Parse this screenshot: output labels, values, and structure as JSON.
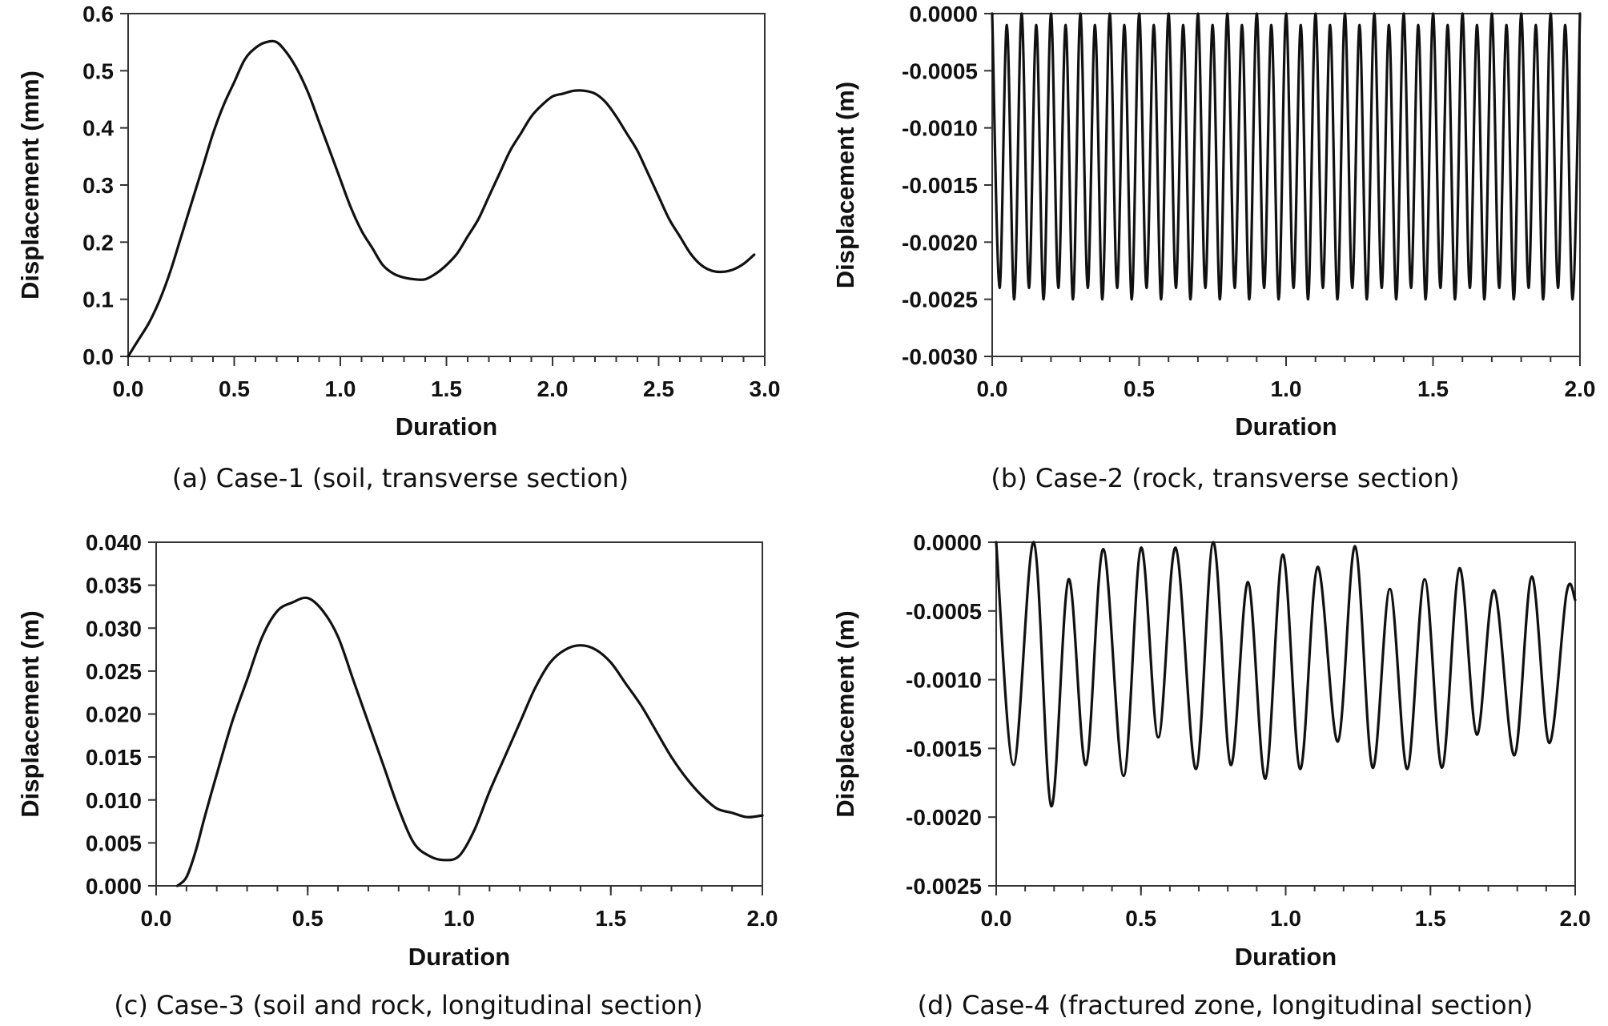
{
  "chart_data": [
    {
      "type": "line",
      "id": "a",
      "caption": "(a) Case-1 (soil, transverse section)",
      "xlabel": "Duration",
      "ylabel": "Displacement (mm)",
      "xlim": [
        0,
        3.0
      ],
      "ylim": [
        0,
        0.6
      ],
      "xticks": [
        0,
        0.5,
        1.0,
        1.5,
        2.0,
        2.5,
        3.0
      ],
      "xtick_labels": [
        "0.0",
        "0.5",
        "1.0",
        "1.5",
        "2.0",
        "2.5",
        "3.0"
      ],
      "yticks": [
        0,
        0.1,
        0.2,
        0.3,
        0.4,
        0.5,
        0.6
      ],
      "ytick_labels": [
        "0.0",
        "0.1",
        "0.2",
        "0.3",
        "0.4",
        "0.5",
        "0.6"
      ],
      "x_minor": 0.1,
      "grid": false,
      "series": [
        {
          "x": [
            0.0,
            0.05,
            0.1,
            0.15,
            0.2,
            0.25,
            0.3,
            0.35,
            0.4,
            0.45,
            0.5,
            0.55,
            0.6,
            0.65,
            0.7,
            0.75,
            0.8,
            0.85,
            0.9,
            0.95,
            1.0,
            1.05,
            1.1,
            1.15,
            1.2,
            1.25,
            1.3,
            1.35,
            1.4,
            1.45,
            1.5,
            1.55,
            1.6,
            1.65,
            1.7,
            1.75,
            1.8,
            1.85,
            1.9,
            1.95,
            2.0,
            2.05,
            2.1,
            2.15,
            2.2,
            2.25,
            2.3,
            2.35,
            2.4,
            2.45,
            2.5,
            2.55,
            2.6,
            2.65,
            2.7,
            2.75,
            2.8,
            2.85,
            2.9,
            2.95
          ],
          "y": [
            0.0,
            0.03,
            0.06,
            0.1,
            0.15,
            0.21,
            0.27,
            0.33,
            0.39,
            0.44,
            0.48,
            0.52,
            0.54,
            0.55,
            0.55,
            0.53,
            0.5,
            0.46,
            0.41,
            0.36,
            0.31,
            0.26,
            0.22,
            0.19,
            0.16,
            0.145,
            0.138,
            0.135,
            0.135,
            0.145,
            0.16,
            0.18,
            0.21,
            0.24,
            0.28,
            0.32,
            0.36,
            0.39,
            0.42,
            0.44,
            0.455,
            0.46,
            0.465,
            0.465,
            0.46,
            0.445,
            0.42,
            0.39,
            0.36,
            0.32,
            0.28,
            0.24,
            0.21,
            0.18,
            0.16,
            0.15,
            0.148,
            0.152,
            0.162,
            0.178
          ]
        }
      ]
    },
    {
      "type": "line",
      "id": "b",
      "caption": "(b) Case-2 (rock, transverse section)",
      "xlabel": "Duration",
      "ylabel": "Displacement (m)",
      "xlim": [
        0,
        2.0
      ],
      "ylim": [
        -0.003,
        0
      ],
      "xticks": [
        0,
        0.5,
        1.0,
        1.5,
        2.0
      ],
      "xtick_labels": [
        "0.0",
        "0.5",
        "1.0",
        "1.5",
        "2.0"
      ],
      "yticks": [
        0,
        -0.0005,
        -0.001,
        -0.0015,
        -0.002,
        -0.0025,
        -0.003
      ],
      "ytick_labels": [
        "0.0000",
        "-0.0005",
        "-0.0010",
        "-0.0015",
        "-0.0020",
        "-0.0025",
        "-0.0030"
      ],
      "x_minor": 0.1,
      "grid": false,
      "series": [
        {
          "x": [
            0.0,
            0.025,
            0.05,
            0.075,
            0.1,
            0.125,
            0.15,
            0.175,
            0.2,
            0.225,
            0.25,
            0.275,
            0.3,
            0.325,
            0.35,
            0.375,
            0.4,
            0.425,
            0.45,
            0.475,
            0.5,
            0.525,
            0.55,
            0.575,
            0.6,
            0.625,
            0.65,
            0.675,
            0.7,
            0.725,
            0.75,
            0.775,
            0.8,
            0.825,
            0.85,
            0.875,
            0.9,
            0.925,
            0.95,
            0.975,
            1.0,
            1.025,
            1.05,
            1.075,
            1.1,
            1.125,
            1.15,
            1.175,
            1.2,
            1.225,
            1.25,
            1.275,
            1.3,
            1.325,
            1.35,
            1.375,
            1.4,
            1.425,
            1.45,
            1.475,
            1.5,
            1.525,
            1.55,
            1.575,
            1.6,
            1.625,
            1.65,
            1.675,
            1.7,
            1.725,
            1.75,
            1.775,
            1.8,
            1.825,
            1.85,
            1.875,
            1.9,
            1.925,
            1.95,
            1.975,
            2.0
          ],
          "y": [
            0.0,
            -0.0024,
            -0.0001,
            -0.0025,
            -0.0,
            -0.0024,
            -0.0001,
            -0.0025,
            -0.0,
            -0.0024,
            -0.0001,
            -0.0025,
            -0.0,
            -0.0024,
            -0.0001,
            -0.0025,
            -0.0,
            -0.0024,
            -0.0001,
            -0.0025,
            -0.0,
            -0.0024,
            -0.0001,
            -0.0025,
            -0.0,
            -0.0024,
            -0.0001,
            -0.0025,
            -0.0,
            -0.0024,
            -0.0001,
            -0.0025,
            -0.0,
            -0.0024,
            -0.0001,
            -0.0025,
            -0.0,
            -0.0024,
            -0.0001,
            -0.0025,
            -0.0,
            -0.0024,
            -0.0001,
            -0.0025,
            -0.0,
            -0.0024,
            -0.0001,
            -0.0025,
            -0.0,
            -0.0024,
            -0.0001,
            -0.0025,
            -0.0,
            -0.0024,
            -0.0001,
            -0.0025,
            -0.0,
            -0.0024,
            -0.0001,
            -0.0025,
            -0.0,
            -0.0024,
            -0.0001,
            -0.0025,
            -0.0,
            -0.0024,
            -0.0001,
            -0.0025,
            -0.0,
            -0.0024,
            -0.0001,
            -0.0025,
            -0.0,
            -0.0024,
            -0.0001,
            -0.0025,
            -0.0,
            -0.0024,
            -0.0001,
            -0.0025,
            -0.0
          ]
        }
      ]
    },
    {
      "type": "line",
      "id": "c",
      "caption": "(c) Case-3 (soil and rock, longitudinal section)",
      "xlabel": "Duration",
      "ylabel": "Displacement (m)",
      "xlim": [
        0,
        2.0
      ],
      "ylim": [
        0,
        0.04
      ],
      "xticks": [
        0,
        0.5,
        1.0,
        1.5,
        2.0
      ],
      "xtick_labels": [
        "0.0",
        "0.5",
        "1.0",
        "1.5",
        "2.0"
      ],
      "yticks": [
        0,
        0.005,
        0.01,
        0.015,
        0.02,
        0.025,
        0.03,
        0.035,
        0.04
      ],
      "ytick_labels": [
        "0.000",
        "0.005",
        "0.010",
        "0.015",
        "0.020",
        "0.025",
        "0.030",
        "0.035",
        "0.040"
      ],
      "x_minor": 0.1,
      "grid": false,
      "series": [
        {
          "x": [
            0.07,
            0.1,
            0.13,
            0.16,
            0.2,
            0.25,
            0.3,
            0.35,
            0.4,
            0.45,
            0.5,
            0.55,
            0.6,
            0.65,
            0.7,
            0.75,
            0.8,
            0.85,
            0.9,
            0.95,
            1.0,
            1.05,
            1.1,
            1.15,
            1.2,
            1.25,
            1.3,
            1.35,
            1.4,
            1.45,
            1.5,
            1.55,
            1.6,
            1.65,
            1.7,
            1.75,
            1.8,
            1.85,
            1.9,
            1.95,
            2.0
          ],
          "y": [
            0.0,
            0.001,
            0.004,
            0.008,
            0.013,
            0.019,
            0.024,
            0.029,
            0.032,
            0.033,
            0.0335,
            0.032,
            0.029,
            0.024,
            0.019,
            0.014,
            0.009,
            0.005,
            0.0035,
            0.003,
            0.0035,
            0.0065,
            0.011,
            0.015,
            0.019,
            0.023,
            0.026,
            0.0275,
            0.028,
            0.0275,
            0.026,
            0.0235,
            0.021,
            0.018,
            0.015,
            0.0125,
            0.0105,
            0.009,
            0.0085,
            0.008,
            0.0082
          ]
        }
      ]
    },
    {
      "type": "line",
      "id": "d",
      "caption": "(d) Case-4 (fractured zone, longitudinal section)",
      "xlabel": "Duration",
      "ylabel": "Displacement (m)",
      "xlim": [
        0,
        2.0
      ],
      "ylim": [
        -0.0025,
        0
      ],
      "xticks": [
        0,
        0.5,
        1.0,
        1.5,
        2.0
      ],
      "xtick_labels": [
        "0.0",
        "0.5",
        "1.0",
        "1.5",
        "2.0"
      ],
      "yticks": [
        0,
        -0.0005,
        -0.001,
        -0.0015,
        -0.002,
        -0.0025
      ],
      "ytick_labels": [
        "0.0000",
        "-0.0005",
        "-0.0010",
        "-0.0015",
        "-0.0020",
        "-0.0025"
      ],
      "x_minor": 0.1,
      "grid": false,
      "series": [
        {
          "x": [
            0.0,
            0.06,
            0.13,
            0.19,
            0.25,
            0.31,
            0.37,
            0.44,
            0.5,
            0.56,
            0.62,
            0.69,
            0.75,
            0.81,
            0.87,
            0.93,
            0.99,
            1.05,
            1.11,
            1.18,
            1.24,
            1.3,
            1.36,
            1.42,
            1.48,
            1.54,
            1.6,
            1.66,
            1.72,
            1.79,
            1.85,
            1.91,
            1.97,
            2.0
          ],
          "y": [
            0.0,
            -0.00162,
            0.0,
            -0.00192,
            -0.00027,
            -0.00162,
            -5e-05,
            -0.0017,
            -4e-05,
            -0.00142,
            -4e-05,
            -0.00165,
            0.0,
            -0.00162,
            -0.00029,
            -0.00172,
            -9e-05,
            -0.00165,
            -0.00018,
            -0.00145,
            -3e-05,
            -0.00164,
            -0.00034,
            -0.00165,
            -0.00027,
            -0.00164,
            -0.00019,
            -0.0014,
            -0.00035,
            -0.00155,
            -0.00025,
            -0.00146,
            -0.00037,
            -0.00042
          ]
        }
      ]
    }
  ]
}
